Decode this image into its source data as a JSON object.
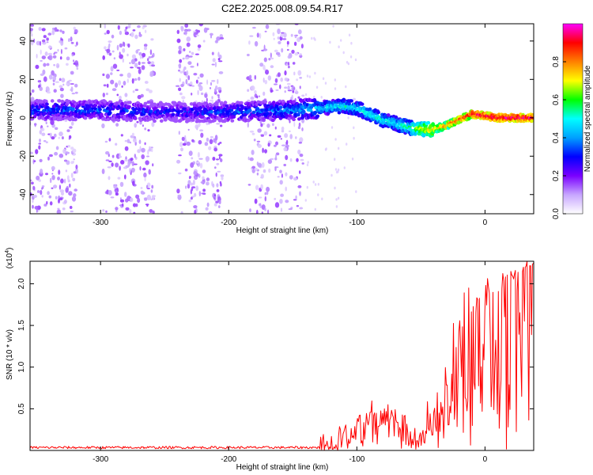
{
  "chart_data": [
    {
      "type": "heatmap",
      "title": "C2E2.2025.008.09.54.R17",
      "xlabel": "Height of straight line (km)",
      "ylabel": "Frequency (Hz)",
      "xlim": [
        -355,
        38
      ],
      "ylim": [
        -50,
        49
      ],
      "xticks": [
        -300,
        -200,
        -100,
        0
      ],
      "yticks": [
        -40,
        -20,
        0,
        20,
        40
      ],
      "grid": false,
      "colorbar": {
        "label": "Normalized spectral amplitude",
        "range": [
          0,
          1
        ],
        "ticks": [
          "0.0",
          "0.2",
          "0.4",
          "0.6",
          "0.8"
        ],
        "colors": [
          "#ffffff",
          "#c7a6ff",
          "#7a00ff",
          "#0000ff",
          "#00a0ff",
          "#00ffff",
          "#00ff00",
          "#ffff00",
          "#ff8000",
          "#ff0000",
          "#ff00ff"
        ]
      },
      "ridge": {
        "description_units": "x in km, y in Hz, amplitude 0-1",
        "x": [
          -355,
          -300,
          -250,
          -200,
          -150,
          -130,
          -110,
          -100,
          -90,
          -80,
          -70,
          -60,
          -50,
          -40,
          -30,
          -20,
          -10,
          0,
          10,
          20,
          38
        ],
        "y": [
          4,
          4,
          3,
          3,
          4,
          5,
          6,
          5,
          2,
          -1,
          -3,
          -5,
          -6,
          -6,
          -4,
          -1,
          2,
          1,
          0,
          0,
          0
        ],
        "amplitude": [
          0.35,
          0.35,
          0.3,
          0.35,
          0.4,
          0.45,
          0.5,
          0.5,
          0.5,
          0.5,
          0.5,
          0.55,
          0.7,
          0.75,
          0.8,
          0.85,
          0.9,
          0.95,
          0.95,
          0.95,
          0.95
        ]
      },
      "noise_bands_km": [
        [
          -355,
          -318
        ],
        [
          -298,
          -258
        ],
        [
          -240,
          -205
        ],
        [
          -185,
          -142
        ]
      ]
    },
    {
      "type": "line",
      "xlabel": "Height of straight line (km)",
      "ylabel": "SNR (10 * v/v)",
      "multiplier": "(x10⁴)",
      "xlim": [
        -355,
        38
      ],
      "ylim": [
        0,
        2.27
      ],
      "xticks": [
        -300,
        -200,
        -100,
        0
      ],
      "yticks": [
        "0.5",
        "1.0",
        "1.5",
        "2.0"
      ],
      "ytick_values": [
        0.5,
        1.0,
        1.5,
        2.0
      ],
      "grid": false,
      "series": [
        {
          "color": "#ff0000",
          "envelope_x": [
            -355,
            -130,
            -120,
            -110,
            -100,
            -95,
            -90,
            -85,
            -80,
            -75,
            -70,
            -65,
            -60,
            -55,
            -50,
            -45,
            -40,
            -35,
            -30,
            -25,
            -20,
            -15,
            -10,
            -5,
            0,
            5,
            10,
            15,
            20,
            25,
            30,
            38
          ],
          "envelope_y": [
            0.04,
            0.04,
            0.06,
            0.12,
            0.18,
            0.25,
            0.35,
            0.42,
            0.45,
            0.4,
            0.35,
            0.28,
            0.18,
            0.15,
            0.2,
            0.3,
            0.45,
            0.55,
            0.75,
            0.95,
            1.2,
            1.35,
            1.5,
            1.55,
            1.65,
            1.75,
            1.85,
            1.95,
            2.0,
            2.1,
            2.18,
            2.22
          ],
          "peak_x": [
            -110,
            -88,
            -80,
            -65,
            -40,
            -32,
            -25,
            -20,
            -15,
            -10,
            -3,
            5,
            15,
            30,
            38
          ],
          "peak_y": [
            0.3,
            0.6,
            0.65,
            0.45,
            0.8,
            1.0,
            1.55,
            2.05,
            2.12,
            1.8,
            2.05,
            2.1,
            2.15,
            2.2,
            2.27
          ]
        }
      ]
    }
  ]
}
